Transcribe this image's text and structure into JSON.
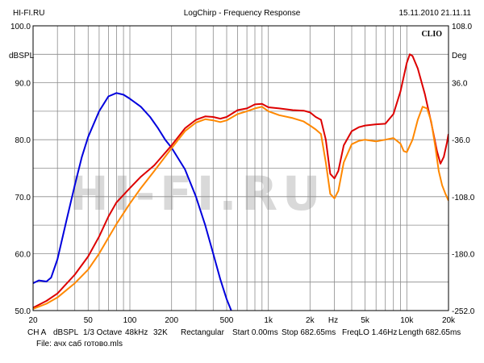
{
  "header": {
    "left": "HI-FI.RU",
    "center": "LogChirp - Frequency Response",
    "right": "15.11.2010 21.11.11"
  },
  "brand": "CLIO",
  "watermark": "HI-FI.RU",
  "footer": {
    "line1": [
      "CH A",
      "dBSPL",
      "1/3 Octave",
      "48kHz",
      "32K",
      "Rectangular",
      "Start 0.00ms",
      "Stop 682.65ms",
      "FreqLO 1.46Hz",
      "Length 682.65ms"
    ],
    "file": "File: ачх саб готово.mls"
  },
  "chart_data": {
    "type": "line",
    "title": "LogChirp - Frequency Response",
    "x_scale": "log",
    "xlim": [
      20,
      20000
    ],
    "ylim_left": [
      50,
      100
    ],
    "ylim_right": [
      -252,
      108
    ],
    "left_axis_label": "dBSPL",
    "right_axis_label": "Deg",
    "x_axis_label": "Hz",
    "x_tick_labels": [
      {
        "value": 20,
        "label": "20"
      },
      {
        "value": 50,
        "label": "50"
      },
      {
        "value": 100,
        "label": "100"
      },
      {
        "value": 200,
        "label": "200"
      },
      {
        "value": 500,
        "label": "500"
      },
      {
        "value": 1000,
        "label": "1k"
      },
      {
        "value": 2000,
        "label": "2k"
      },
      {
        "value": 5000,
        "label": "5k"
      },
      {
        "value": 10000,
        "label": "10k"
      },
      {
        "value": 20000,
        "label": "20k"
      }
    ],
    "y_left_ticks": [
      "100.0",
      "90.0",
      "80.0",
      "70.0",
      "60.0",
      "50.0"
    ],
    "y_right_ticks": [
      "108.0",
      "36.0",
      "-36.0",
      "-108.0",
      "-180.0",
      "-252.0"
    ],
    "grid": true,
    "series": [
      {
        "color": "#0000dd",
        "axis": "left",
        "points": [
          [
            20,
            54.8
          ],
          [
            22,
            55.3
          ],
          [
            25,
            55.1
          ],
          [
            27,
            55.8
          ],
          [
            30,
            59
          ],
          [
            35,
            66
          ],
          [
            40,
            72
          ],
          [
            45,
            77
          ],
          [
            50,
            80.5
          ],
          [
            60,
            85
          ],
          [
            70,
            87.6
          ],
          [
            80,
            88.2
          ],
          [
            90,
            87.9
          ],
          [
            100,
            87.2
          ],
          [
            120,
            85.8
          ],
          [
            140,
            84
          ],
          [
            160,
            82
          ],
          [
            180,
            80
          ],
          [
            200,
            78.6
          ],
          [
            250,
            74.8
          ],
          [
            300,
            70
          ],
          [
            350,
            65
          ],
          [
            400,
            60
          ],
          [
            450,
            55.5
          ],
          [
            500,
            52
          ],
          [
            540,
            50
          ]
        ]
      },
      {
        "color": "#dd0000",
        "axis": "left",
        "points": [
          [
            20,
            50.5
          ],
          [
            25,
            51.7
          ],
          [
            30,
            53
          ],
          [
            40,
            56.3
          ],
          [
            50,
            59.5
          ],
          [
            60,
            63
          ],
          [
            70,
            66.5
          ],
          [
            80,
            69
          ],
          [
            100,
            71.5
          ],
          [
            120,
            73.5
          ],
          [
            150,
            75.5
          ],
          [
            200,
            79
          ],
          [
            250,
            82
          ],
          [
            300,
            83.5
          ],
          [
            350,
            84.1
          ],
          [
            400,
            84
          ],
          [
            450,
            83.7
          ],
          [
            500,
            84
          ],
          [
            600,
            85.2
          ],
          [
            700,
            85.5
          ],
          [
            800,
            86.2
          ],
          [
            900,
            86.3
          ],
          [
            1000,
            85.7
          ],
          [
            1200,
            85.5
          ],
          [
            1500,
            85.2
          ],
          [
            1800,
            85.1
          ],
          [
            2000,
            84.8
          ],
          [
            2200,
            84
          ],
          [
            2400,
            83.5
          ],
          [
            2600,
            80
          ],
          [
            2800,
            74
          ],
          [
            3000,
            73.2
          ],
          [
            3200,
            74.5
          ],
          [
            3500,
            79
          ],
          [
            4000,
            81.5
          ],
          [
            4500,
            82.2
          ],
          [
            5000,
            82.5
          ],
          [
            6000,
            82.7
          ],
          [
            7000,
            82.8
          ],
          [
            8000,
            84.5
          ],
          [
            9000,
            88.5
          ],
          [
            10000,
            93.5
          ],
          [
            10500,
            95
          ],
          [
            11000,
            94.7
          ],
          [
            12000,
            92.5
          ],
          [
            13500,
            88
          ],
          [
            15000,
            83
          ],
          [
            16500,
            78
          ],
          [
            17500,
            75.8
          ],
          [
            18500,
            77
          ],
          [
            19500,
            79.5
          ],
          [
            20000,
            81
          ]
        ]
      },
      {
        "color": "#ff8800",
        "axis": "left",
        "points": [
          [
            20,
            50.3
          ],
          [
            25,
            51.2
          ],
          [
            30,
            52.3
          ],
          [
            40,
            54.8
          ],
          [
            50,
            57.2
          ],
          [
            60,
            60
          ],
          [
            70,
            62.8
          ],
          [
            80,
            65.2
          ],
          [
            100,
            68.8
          ],
          [
            120,
            71.5
          ],
          [
            150,
            74.5
          ],
          [
            200,
            78.5
          ],
          [
            250,
            81.5
          ],
          [
            300,
            83
          ],
          [
            350,
            83.6
          ],
          [
            400,
            83.4
          ],
          [
            450,
            83.1
          ],
          [
            500,
            83.4
          ],
          [
            600,
            84.5
          ],
          [
            700,
            85
          ],
          [
            800,
            85.5
          ],
          [
            900,
            85.8
          ],
          [
            1000,
            85
          ],
          [
            1200,
            84.3
          ],
          [
            1500,
            83.8
          ],
          [
            1800,
            83.2
          ],
          [
            2000,
            82.5
          ],
          [
            2200,
            81.8
          ],
          [
            2400,
            81
          ],
          [
            2600,
            76
          ],
          [
            2800,
            70.5
          ],
          [
            3000,
            69.7
          ],
          [
            3200,
            71
          ],
          [
            3500,
            76
          ],
          [
            4000,
            79.2
          ],
          [
            4500,
            79.8
          ],
          [
            5000,
            80
          ],
          [
            6000,
            79.7
          ],
          [
            7000,
            80
          ],
          [
            8000,
            80.3
          ],
          [
            9000,
            79.3
          ],
          [
            9500,
            78
          ],
          [
            10000,
            77.8
          ],
          [
            11000,
            80
          ],
          [
            12000,
            83.5
          ],
          [
            13000,
            85.8
          ],
          [
            14000,
            85.5
          ],
          [
            15000,
            83.2
          ],
          [
            16000,
            79
          ],
          [
            17000,
            74.5
          ],
          [
            18000,
            72
          ],
          [
            19000,
            70.5
          ],
          [
            20000,
            69.3
          ]
        ]
      }
    ]
  }
}
